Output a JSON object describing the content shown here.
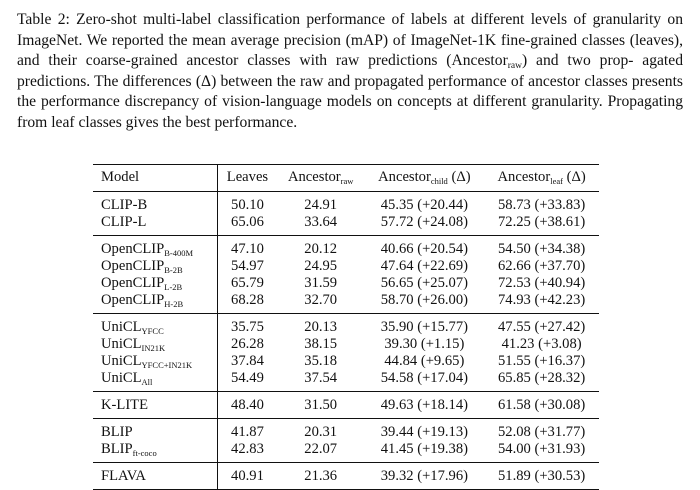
{
  "caption": {
    "l1": "Table 2: Zero-shot multi-label classification performance of labels at different levels of granularity",
    "l2": "on ImageNet. We reported the mean average precision (mAP) of ImageNet-1K fine-grained classes",
    "l3a": "(leaves), and their coarse-grained ancestor classes with raw predictions (Ancestor",
    "l3sub": "raw",
    "l3b": ") and two prop-",
    "l4": "agated predictions. The differences (Δ) between the raw and propagated performance of ancestor",
    "l5": "classes presents the performance discrepancy of vision-language models on concepts at different",
    "l6": "granularity. Propagating from leaf classes gives the best performance."
  },
  "table": {
    "headers": {
      "model": "Model",
      "leaves": "Leaves",
      "raw_base": "Ancestor",
      "raw_sub": "raw",
      "child_base": "Ancestor",
      "child_sub": "child",
      "child_suffix": " (Δ)",
      "leaf_base": "Ancestor",
      "leaf_sub": "leaf",
      "leaf_suffix": " (Δ)"
    },
    "rows": [
      {
        "base": "CLIP-B",
        "sub": "",
        "leaves": "50.10",
        "raw": "24.91",
        "child": "45.35 (+20.44)",
        "leaf": "58.73 (+33.83)"
      },
      {
        "base": "CLIP-L",
        "sub": "",
        "leaves": "65.06",
        "raw": "33.64",
        "child": "57.72 (+24.08)",
        "leaf": "72.25 (+38.61)"
      },
      {
        "base": "OpenCLIP",
        "sub": "B-400M",
        "leaves": "47.10",
        "raw": "20.12",
        "child": "40.66 (+20.54)",
        "leaf": "54.50 (+34.38)"
      },
      {
        "base": "OpenCLIP",
        "sub": "B-2B",
        "leaves": "54.97",
        "raw": "24.95",
        "child": "47.64 (+22.69)",
        "leaf": "62.66 (+37.70)"
      },
      {
        "base": "OpenCLIP",
        "sub": "L-2B",
        "leaves": "65.79",
        "raw": "31.59",
        "child": "56.65 (+25.07)",
        "leaf": "72.53 (+40.94)"
      },
      {
        "base": "OpenCLIP",
        "sub": "H-2B",
        "leaves": "68.28",
        "raw": "32.70",
        "child": "58.70 (+26.00)",
        "leaf": "74.93 (+42.23)"
      },
      {
        "base": "UniCL",
        "sub": "YFCC",
        "leaves": "35.75",
        "raw": "20.13",
        "child": "35.90 (+15.77)",
        "leaf": "47.55 (+27.42)"
      },
      {
        "base": "UniCL",
        "sub": "IN21K",
        "leaves": "26.28",
        "raw": "38.15",
        "child": "39.30 (+1.15)",
        "leaf": "41.23 (+3.08)"
      },
      {
        "base": "UniCL",
        "sub": "YFCC+IN21K",
        "leaves": "37.84",
        "raw": "35.18",
        "child": "44.84 (+9.65)",
        "leaf": "51.55 (+16.37)"
      },
      {
        "base": "UniCL",
        "sub": "All",
        "leaves": "54.49",
        "raw": "37.54",
        "child": "54.58 (+17.04)",
        "leaf": "65.85 (+28.32)"
      },
      {
        "base": "K-LITE",
        "sub": "",
        "leaves": "48.40",
        "raw": "31.50",
        "child": "49.63 (+18.14)",
        "leaf": "61.58 (+30.08)"
      },
      {
        "base": "BLIP",
        "sub": "",
        "leaves": "41.87",
        "raw": "20.31",
        "child": "39.44 (+19.13)",
        "leaf": "52.08 (+31.77)"
      },
      {
        "base": "BLIP",
        "sub": "ft-coco",
        "leaves": "42.83",
        "raw": "22.07",
        "child": "41.45 (+19.38)",
        "leaf": "54.00 (+31.93)"
      },
      {
        "base": "FLAVA",
        "sub": "",
        "leaves": "40.91",
        "raw": "21.36",
        "child": "39.32 (+17.96)",
        "leaf": "51.89 (+30.53)"
      }
    ]
  }
}
